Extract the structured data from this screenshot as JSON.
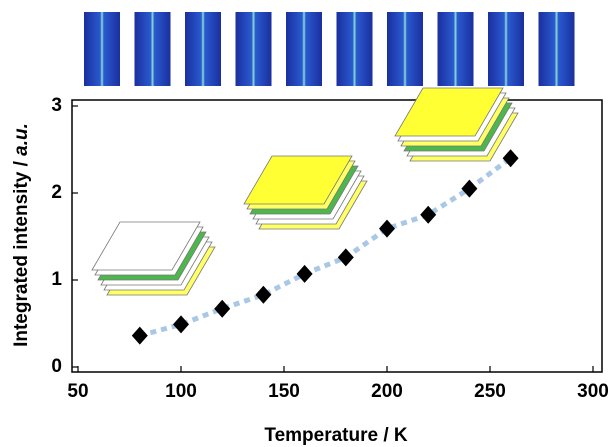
{
  "chart_data": {
    "type": "scatter",
    "x_label": "Temperature / K",
    "y_label": {
      "text": "Integrated intensity / ",
      "unit": "a.u."
    },
    "x": [
      80,
      100,
      120,
      140,
      160,
      180,
      200,
      220,
      240,
      260
    ],
    "series": [
      {
        "color": "#000000",
        "line_color": "#a9c8e8",
        "values": [
          0.36,
          0.49,
          0.67,
          0.83,
          1.07,
          1.26,
          1.59,
          1.75,
          2.05,
          2.4
        ]
      }
    ],
    "xlim": [
      50,
      300
    ],
    "xticks": [
      50,
      100,
      150,
      200,
      250,
      300
    ],
    "ylim": [
      0,
      3
    ],
    "yticks": [
      0,
      1,
      2,
      3
    ],
    "grid": false
  }
}
